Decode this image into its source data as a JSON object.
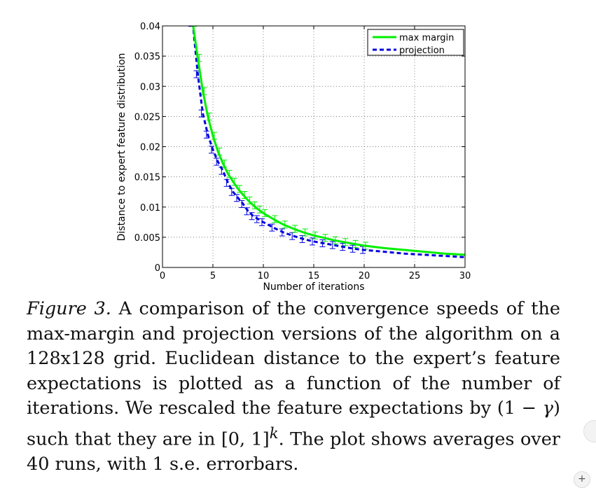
{
  "figure": {
    "chart_data": {
      "type": "line",
      "xlabel": "Number of iterations",
      "ylabel": "Distance to expert feature distribution",
      "xlim": [
        0,
        30
      ],
      "ylim": [
        0,
        0.04
      ],
      "x_ticks": [
        0,
        5,
        10,
        15,
        20,
        25,
        30
      ],
      "x_tick_labels": [
        "0",
        "5",
        "10",
        "15",
        "20",
        "25",
        "30"
      ],
      "y_ticks": [
        0,
        0.005,
        0.01,
        0.015,
        0.02,
        0.025,
        0.03,
        0.035,
        0.04
      ],
      "y_tick_labels": [
        "0",
        "0.005",
        "0.01",
        "0.015",
        "0.02",
        "0.025",
        "0.03",
        "0.035",
        "0.04"
      ],
      "grid": true,
      "legend_position": "top-right",
      "series": [
        {
          "name": "max margin",
          "color": "#00ee00",
          "style": "solid",
          "x": [
            3,
            3.5,
            4,
            4.5,
            5,
            5.5,
            6,
            6.5,
            7,
            7.5,
            8,
            8.5,
            9,
            9.5,
            10,
            11,
            12,
            13,
            14,
            15,
            16,
            17,
            18,
            19,
            20,
            22,
            24,
            26,
            28,
            30
          ],
          "y": [
            0.0405,
            0.0347,
            0.0292,
            0.025,
            0.0218,
            0.0192,
            0.0172,
            0.0155,
            0.0142,
            0.013,
            0.012,
            0.0111,
            0.0103,
            0.0096,
            0.009,
            0.008,
            0.0071,
            0.0064,
            0.0058,
            0.0053,
            0.0049,
            0.0045,
            0.0042,
            0.0039,
            0.0036,
            0.0032,
            0.0029,
            0.0026,
            0.0023,
            0.0021
          ]
        },
        {
          "name": "projection",
          "color": "#0000dd",
          "style": "dashed",
          "x": [
            3,
            3.5,
            4,
            4.5,
            5,
            5.5,
            6,
            6.5,
            7,
            7.5,
            8,
            8.5,
            9,
            9.5,
            10,
            11,
            12,
            13,
            14,
            15,
            16,
            17,
            18,
            19,
            20,
            22,
            24,
            26,
            28,
            30
          ],
          "y": [
            0.0405,
            0.032,
            0.0255,
            0.022,
            0.0195,
            0.0175,
            0.016,
            0.014,
            0.0125,
            0.0115,
            0.0105,
            0.0093,
            0.0085,
            0.008,
            0.0075,
            0.0066,
            0.0058,
            0.0052,
            0.0047,
            0.0043,
            0.004,
            0.0037,
            0.0034,
            0.0031,
            0.0029,
            0.0026,
            0.0023,
            0.0021,
            0.0019,
            0.0017
          ]
        }
      ]
    }
  },
  "caption": {
    "label": "Figure 3.",
    "text_1": " A comparison of the convergence speeds of the max-margin and projection versions of the algorithm on a 128x128 grid. Euclidean distance to the expert’s feature expectations is plotted as a function of the number of iterations. We rescaled the feature expectations by ",
    "math_1": "(1 − ",
    "gamma": "γ",
    "math_2": ")",
    "text_2": " such that they are in ",
    "math_3": "[0, 1]",
    "sup_k": "k",
    "text_3": ". The plot shows averages over 40 runs, with 1 s.e. errorbars."
  },
  "ui": {
    "plus_button": "+"
  }
}
